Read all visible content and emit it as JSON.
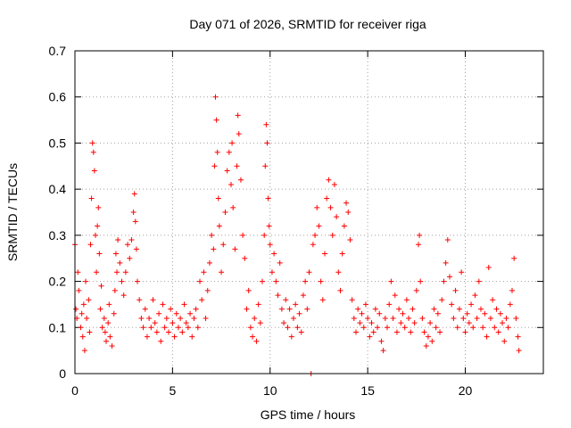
{
  "chart_data": {
    "type": "scatter",
    "title": "Day 071 of 2026, SRMTID for receiver riga",
    "xlabel": "GPS time / hours",
    "ylabel": "SRMTID / TECUs",
    "xlim": [
      0,
      24
    ],
    "ylim": [
      0,
      0.7
    ],
    "x_ticks": [
      0,
      5,
      10,
      15,
      20
    ],
    "x_tick_labels": [
      "0",
      "5",
      "10",
      "15",
      "20"
    ],
    "y_ticks": [
      0,
      0.1,
      0.2,
      0.3,
      0.4,
      0.5,
      0.6,
      0.7
    ],
    "y_tick_labels": [
      "0",
      "0.1",
      "0.2",
      "0.3",
      "0.4",
      "0.5",
      "0.6",
      "0.7"
    ],
    "grid": true,
    "marker": "plus",
    "series_color": "#ff0000",
    "series": [
      {
        "name": "SRMTID",
        "approx_points": [
          [
            0.0,
            0.28
          ],
          [
            0.05,
            0.14
          ],
          [
            0.1,
            0.12
          ],
          [
            0.15,
            0.22
          ],
          [
            0.2,
            0.18
          ],
          [
            0.3,
            0.1
          ],
          [
            0.35,
            0.13
          ],
          [
            0.4,
            0.08
          ],
          [
            0.45,
            0.15
          ],
          [
            0.5,
            0.05
          ],
          [
            0.55,
            0.2
          ],
          [
            0.6,
            0.12
          ],
          [
            0.7,
            0.16
          ],
          [
            0.75,
            0.09
          ],
          [
            0.8,
            0.28
          ],
          [
            0.85,
            0.38
          ],
          [
            0.9,
            0.5
          ],
          [
            0.95,
            0.48
          ],
          [
            1.0,
            0.44
          ],
          [
            1.05,
            0.3
          ],
          [
            1.1,
            0.22
          ],
          [
            1.15,
            0.32
          ],
          [
            1.2,
            0.36
          ],
          [
            1.25,
            0.26
          ],
          [
            1.3,
            0.14
          ],
          [
            1.35,
            0.19
          ],
          [
            1.4,
            0.1
          ],
          [
            1.5,
            0.12
          ],
          [
            1.55,
            0.09
          ],
          [
            1.6,
            0.07
          ],
          [
            1.7,
            0.11
          ],
          [
            1.75,
            0.15
          ],
          [
            1.8,
            0.08
          ],
          [
            1.9,
            0.06
          ],
          [
            2.0,
            0.13
          ],
          [
            2.05,
            0.18
          ],
          [
            2.1,
            0.26
          ],
          [
            2.15,
            0.22
          ],
          [
            2.2,
            0.29
          ],
          [
            2.3,
            0.24
          ],
          [
            2.4,
            0.2
          ],
          [
            2.5,
            0.17
          ],
          [
            2.6,
            0.22
          ],
          [
            2.7,
            0.28
          ],
          [
            2.8,
            0.25
          ],
          [
            2.9,
            0.29
          ],
          [
            3.0,
            0.35
          ],
          [
            3.05,
            0.39
          ],
          [
            3.1,
            0.33
          ],
          [
            3.15,
            0.27
          ],
          [
            3.2,
            0.2
          ],
          [
            3.3,
            0.16
          ],
          [
            3.4,
            0.12
          ],
          [
            3.5,
            0.1
          ],
          [
            3.6,
            0.14
          ],
          [
            3.7,
            0.08
          ],
          [
            3.8,
            0.12
          ],
          [
            3.9,
            0.1
          ],
          [
            4.0,
            0.16
          ],
          [
            4.1,
            0.11
          ],
          [
            4.2,
            0.09
          ],
          [
            4.3,
            0.13
          ],
          [
            4.4,
            0.07
          ],
          [
            4.5,
            0.15
          ],
          [
            4.6,
            0.1
          ],
          [
            4.7,
            0.12
          ],
          [
            4.8,
            0.09
          ],
          [
            4.9,
            0.14
          ],
          [
            5.0,
            0.11
          ],
          [
            5.1,
            0.08
          ],
          [
            5.2,
            0.13
          ],
          [
            5.3,
            0.1
          ],
          [
            5.4,
            0.12
          ],
          [
            5.5,
            0.09
          ],
          [
            5.6,
            0.15
          ],
          [
            5.7,
            0.11
          ],
          [
            5.8,
            0.1
          ],
          [
            5.9,
            0.13
          ],
          [
            6.0,
            0.08
          ],
          [
            6.1,
            0.12
          ],
          [
            6.2,
            0.14
          ],
          [
            6.3,
            0.1
          ],
          [
            6.4,
            0.2
          ],
          [
            6.5,
            0.16
          ],
          [
            6.6,
            0.22
          ],
          [
            6.7,
            0.12
          ],
          [
            6.8,
            0.18
          ],
          [
            6.9,
            0.24
          ],
          [
            7.0,
            0.3
          ],
          [
            7.1,
            0.27
          ],
          [
            7.15,
            0.45
          ],
          [
            7.2,
            0.6
          ],
          [
            7.25,
            0.55
          ],
          [
            7.3,
            0.48
          ],
          [
            7.35,
            0.38
          ],
          [
            7.4,
            0.32
          ],
          [
            7.5,
            0.22
          ],
          [
            7.6,
            0.28
          ],
          [
            7.7,
            0.35
          ],
          [
            7.8,
            0.44
          ],
          [
            7.9,
            0.48
          ],
          [
            8.0,
            0.41
          ],
          [
            8.05,
            0.5
          ],
          [
            8.1,
            0.36
          ],
          [
            8.2,
            0.27
          ],
          [
            8.3,
            0.45
          ],
          [
            8.35,
            0.56
          ],
          [
            8.4,
            0.52
          ],
          [
            8.5,
            0.42
          ],
          [
            8.6,
            0.3
          ],
          [
            8.7,
            0.25
          ],
          [
            8.8,
            0.14
          ],
          [
            8.9,
            0.18
          ],
          [
            9.0,
            0.1
          ],
          [
            9.1,
            0.08
          ],
          [
            9.2,
            0.12
          ],
          [
            9.3,
            0.07
          ],
          [
            9.4,
            0.15
          ],
          [
            9.5,
            0.11
          ],
          [
            9.6,
            0.2
          ],
          [
            9.7,
            0.3
          ],
          [
            9.75,
            0.45
          ],
          [
            9.8,
            0.54
          ],
          [
            9.85,
            0.5
          ],
          [
            9.9,
            0.38
          ],
          [
            9.95,
            0.32
          ],
          [
            10.0,
            0.28
          ],
          [
            10.1,
            0.22
          ],
          [
            10.2,
            0.26
          ],
          [
            10.3,
            0.2
          ],
          [
            10.4,
            0.17
          ],
          [
            10.5,
            0.24
          ],
          [
            10.6,
            0.14
          ],
          [
            10.7,
            0.11
          ],
          [
            10.8,
            0.16
          ],
          [
            10.9,
            0.1
          ],
          [
            11.0,
            0.14
          ],
          [
            11.1,
            0.08
          ],
          [
            11.2,
            0.12
          ],
          [
            11.3,
            0.15
          ],
          [
            11.4,
            0.1
          ],
          [
            11.5,
            0.13
          ],
          [
            11.6,
            0.09
          ],
          [
            11.7,
            0.17
          ],
          [
            11.8,
            0.2
          ],
          [
            11.9,
            0.14
          ],
          [
            12.0,
            0.22
          ],
          [
            12.1,
            0.0
          ],
          [
            12.2,
            0.28
          ],
          [
            12.3,
            0.3
          ],
          [
            12.4,
            0.36
          ],
          [
            12.5,
            0.32
          ],
          [
            12.6,
            0.2
          ],
          [
            12.7,
            0.16
          ],
          [
            12.8,
            0.26
          ],
          [
            12.9,
            0.38
          ],
          [
            13.0,
            0.42
          ],
          [
            13.1,
            0.36
          ],
          [
            13.2,
            0.3
          ],
          [
            13.3,
            0.41
          ],
          [
            13.4,
            0.34
          ],
          [
            13.5,
            0.22
          ],
          [
            13.6,
            0.18
          ],
          [
            13.7,
            0.26
          ],
          [
            13.8,
            0.32
          ],
          [
            13.9,
            0.37
          ],
          [
            14.0,
            0.35
          ],
          [
            14.1,
            0.29
          ],
          [
            14.2,
            0.16
          ],
          [
            14.3,
            0.12
          ],
          [
            14.4,
            0.09
          ],
          [
            14.5,
            0.14
          ],
          [
            14.6,
            0.11
          ],
          [
            14.7,
            0.13
          ],
          [
            14.8,
            0.1
          ],
          [
            14.9,
            0.15
          ],
          [
            15.0,
            0.12
          ],
          [
            15.1,
            0.08
          ],
          [
            15.2,
            0.11
          ],
          [
            15.3,
            0.09
          ],
          [
            15.4,
            0.14
          ],
          [
            15.5,
            0.1
          ],
          [
            15.6,
            0.13
          ],
          [
            15.7,
            0.07
          ],
          [
            15.8,
            0.05
          ],
          [
            15.9,
            0.12
          ],
          [
            16.0,
            0.1
          ],
          [
            16.1,
            0.15
          ],
          [
            16.2,
            0.2
          ],
          [
            16.3,
            0.12
          ],
          [
            16.4,
            0.17
          ],
          [
            16.5,
            0.09
          ],
          [
            16.6,
            0.14
          ],
          [
            16.7,
            0.11
          ],
          [
            16.8,
            0.13
          ],
          [
            16.9,
            0.1
          ],
          [
            17.0,
            0.16
          ],
          [
            17.1,
            0.12
          ],
          [
            17.2,
            0.09
          ],
          [
            17.3,
            0.14
          ],
          [
            17.4,
            0.11
          ],
          [
            17.5,
            0.18
          ],
          [
            17.6,
            0.28
          ],
          [
            17.65,
            0.3
          ],
          [
            17.7,
            0.2
          ],
          [
            17.8,
            0.12
          ],
          [
            17.9,
            0.09
          ],
          [
            18.0,
            0.06
          ],
          [
            18.1,
            0.08
          ],
          [
            18.2,
            0.11
          ],
          [
            18.3,
            0.07
          ],
          [
            18.4,
            0.14
          ],
          [
            18.5,
            0.1
          ],
          [
            18.6,
            0.13
          ],
          [
            18.7,
            0.09
          ],
          [
            18.8,
            0.16
          ],
          [
            18.9,
            0.2
          ],
          [
            19.0,
            0.24
          ],
          [
            19.1,
            0.29
          ],
          [
            19.2,
            0.21
          ],
          [
            19.3,
            0.15
          ],
          [
            19.4,
            0.12
          ],
          [
            19.5,
            0.18
          ],
          [
            19.6,
            0.1
          ],
          [
            19.7,
            0.14
          ],
          [
            19.8,
            0.22
          ],
          [
            19.9,
            0.12
          ],
          [
            20.0,
            0.09
          ],
          [
            20.1,
            0.13
          ],
          [
            20.2,
            0.11
          ],
          [
            20.3,
            0.15
          ],
          [
            20.4,
            0.1
          ],
          [
            20.5,
            0.17
          ],
          [
            20.6,
            0.12
          ],
          [
            20.7,
            0.2
          ],
          [
            20.8,
            0.14
          ],
          [
            20.9,
            0.1
          ],
          [
            21.0,
            0.13
          ],
          [
            21.1,
            0.08
          ],
          [
            21.2,
            0.23
          ],
          [
            21.3,
            0.12
          ],
          [
            21.4,
            0.16
          ],
          [
            21.5,
            0.1
          ],
          [
            21.6,
            0.14
          ],
          [
            21.7,
            0.09
          ],
          [
            21.8,
            0.13
          ],
          [
            21.9,
            0.11
          ],
          [
            22.0,
            0.07
          ],
          [
            22.1,
            0.12
          ],
          [
            22.2,
            0.1
          ],
          [
            22.3,
            0.15
          ],
          [
            22.4,
            0.18
          ],
          [
            22.5,
            0.25
          ],
          [
            22.6,
            0.12
          ],
          [
            22.7,
            0.08
          ],
          [
            22.75,
            0.05
          ]
        ]
      }
    ]
  }
}
